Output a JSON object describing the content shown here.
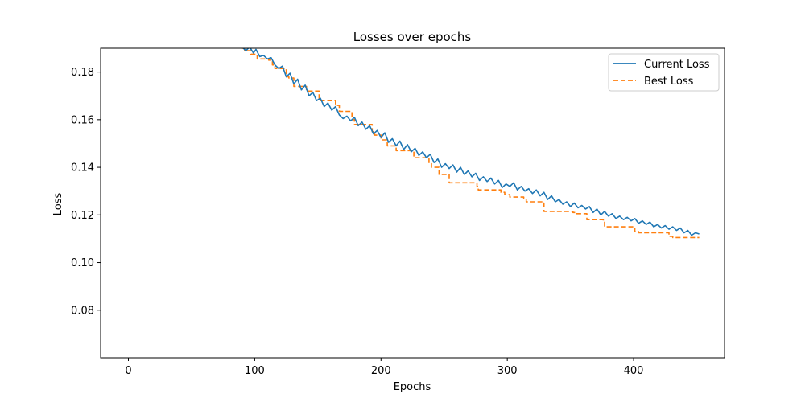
{
  "chart_data": {
    "type": "line",
    "title": "Losses over epochs",
    "xlabel": "Epochs",
    "ylabel": "Loss",
    "xlim": [
      -22,
      472
    ],
    "ylim": [
      0.06,
      0.19
    ],
    "xticks": [
      0,
      100,
      200,
      300,
      400
    ],
    "yticks": [
      0.08,
      0.1,
      0.12,
      0.14,
      0.16,
      0.18
    ],
    "ytick_labels": [
      "0.08",
      "0.10",
      "0.12",
      "0.14",
      "0.16",
      "0.18"
    ],
    "grid": false,
    "legend_position": "top-right",
    "colors": {
      "current": "#1f77b4",
      "best": "#ff7f0e"
    },
    "series": [
      {
        "name": "Current Loss",
        "style": "solid",
        "x": [
          90,
          93,
          96,
          99,
          101,
          104,
          107,
          110,
          113,
          116,
          119,
          122,
          125,
          128,
          131,
          134,
          137,
          140,
          143,
          146,
          149,
          152,
          155,
          158,
          161,
          164,
          167,
          170,
          173,
          176,
          179,
          182,
          185,
          188,
          191,
          194,
          197,
          200,
          203,
          206,
          209,
          212,
          215,
          218,
          221,
          224,
          227,
          230,
          233,
          236,
          239,
          242,
          245,
          248,
          251,
          254,
          257,
          260,
          263,
          266,
          269,
          272,
          275,
          278,
          281,
          284,
          287,
          290,
          293,
          296,
          299,
          302,
          305,
          308,
          311,
          314,
          317,
          320,
          323,
          326,
          329,
          332,
          335,
          338,
          341,
          344,
          347,
          350,
          353,
          356,
          359,
          362,
          365,
          368,
          371,
          374,
          377,
          380,
          383,
          386,
          389,
          392,
          395,
          398,
          401,
          404,
          407,
          410,
          413,
          416,
          419,
          422,
          425,
          428,
          431,
          434,
          437,
          440,
          443,
          446,
          449,
          452
        ],
        "y": [
          0.1905,
          0.189,
          0.1905,
          0.188,
          0.1895,
          0.1865,
          0.187,
          0.1855,
          0.186,
          0.183,
          0.1815,
          0.1825,
          0.178,
          0.1795,
          0.175,
          0.177,
          0.1725,
          0.1745,
          0.17,
          0.1715,
          0.168,
          0.169,
          0.1655,
          0.167,
          0.164,
          0.1655,
          0.162,
          0.1605,
          0.1615,
          0.1595,
          0.161,
          0.1575,
          0.159,
          0.156,
          0.1575,
          0.154,
          0.1555,
          0.1525,
          0.1545,
          0.1505,
          0.152,
          0.149,
          0.151,
          0.1475,
          0.1495,
          0.1465,
          0.148,
          0.145,
          0.1465,
          0.144,
          0.1455,
          0.142,
          0.1435,
          0.14,
          0.1415,
          0.1395,
          0.141,
          0.138,
          0.14,
          0.137,
          0.1385,
          0.136,
          0.1375,
          0.1345,
          0.136,
          0.134,
          0.1355,
          0.133,
          0.1345,
          0.1315,
          0.133,
          0.132,
          0.1335,
          0.1305,
          0.132,
          0.13,
          0.131,
          0.129,
          0.1305,
          0.128,
          0.1295,
          0.1265,
          0.128,
          0.1255,
          0.1265,
          0.1245,
          0.1255,
          0.1235,
          0.125,
          0.123,
          0.124,
          0.1225,
          0.1235,
          0.121,
          0.1225,
          0.12,
          0.1215,
          0.1195,
          0.1205,
          0.1185,
          0.1195,
          0.118,
          0.119,
          0.1175,
          0.1185,
          0.1165,
          0.1175,
          0.116,
          0.117,
          0.115,
          0.116,
          0.1145,
          0.1155,
          0.114,
          0.115,
          0.1135,
          0.1145,
          0.1125,
          0.1135,
          0.1115,
          0.1125,
          0.112
        ]
      },
      {
        "name": "Best Loss",
        "style": "dashed",
        "x": [
          90,
          92,
          92,
          97,
          97,
          102,
          102,
          111,
          111,
          114,
          114,
          116,
          116,
          125,
          125,
          127,
          127,
          131,
          131,
          141,
          141,
          151,
          151,
          164,
          164,
          167,
          167,
          177,
          177,
          179,
          179,
          193,
          193,
          195,
          195,
          200,
          200,
          205,
          205,
          212,
          212,
          226,
          226,
          238,
          238,
          240,
          240,
          246,
          246,
          254,
          254,
          276,
          276,
          277,
          277,
          295,
          295,
          298,
          298,
          302,
          302,
          313,
          313,
          315,
          315,
          328,
          328,
          329,
          329,
          352,
          352,
          354,
          354,
          363,
          363,
          376,
          376,
          377,
          377,
          401,
          401,
          404,
          404,
          428,
          428,
          431,
          431,
          452
        ],
        "y": [
          0.19,
          0.19,
          0.189,
          0.189,
          0.1875,
          0.1875,
          0.1855,
          0.1855,
          0.185,
          0.185,
          0.183,
          0.183,
          0.1815,
          0.1815,
          0.178,
          0.178,
          0.1775,
          0.1775,
          0.174,
          0.174,
          0.172,
          0.172,
          0.168,
          0.168,
          0.166,
          0.166,
          0.1635,
          0.1635,
          0.16,
          0.16,
          0.158,
          0.158,
          0.155,
          0.155,
          0.1535,
          0.1535,
          0.1515,
          0.1515,
          0.149,
          0.149,
          0.147,
          0.147,
          0.144,
          0.144,
          0.1415,
          0.1415,
          0.14,
          0.14,
          0.137,
          0.137,
          0.1335,
          0.1335,
          0.132,
          0.132,
          0.1305,
          0.1305,
          0.1295,
          0.1295,
          0.1285,
          0.1285,
          0.1275,
          0.1275,
          0.127,
          0.127,
          0.1255,
          0.1255,
          0.125,
          0.125,
          0.1215,
          0.1215,
          0.121,
          0.121,
          0.1205,
          0.1205,
          0.118,
          0.118,
          0.1175,
          0.1175,
          0.115,
          0.115,
          0.113,
          0.113,
          0.1125,
          0.1125,
          0.111,
          0.111,
          0.1105,
          0.1105
        ]
      }
    ]
  }
}
